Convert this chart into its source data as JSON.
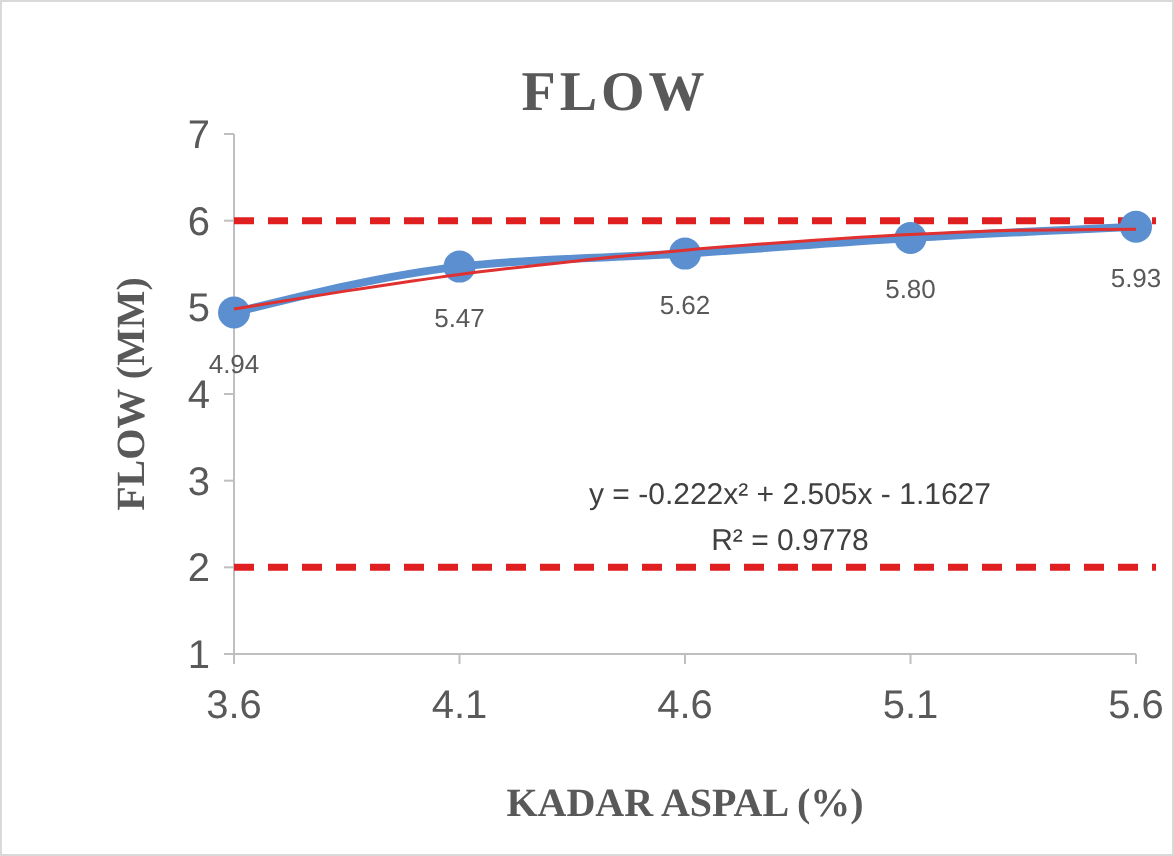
{
  "chart_data": {
    "type": "line",
    "title": "FLOW",
    "xlabel": "KADAR ASPAL (%)",
    "ylabel": "FLOW (MM)",
    "xlim": [
      3.6,
      5.6
    ],
    "xticks": [
      3.6,
      4.1,
      4.6,
      5.1,
      5.6
    ],
    "ylim": [
      1,
      7
    ],
    "yticks": [
      1,
      2,
      3,
      4,
      5,
      6,
      7
    ],
    "grid": false,
    "series": [
      {
        "color": "#5b8fd0",
        "x": [
          3.6,
          4.1,
          4.6,
          5.1,
          5.6
        ],
        "values": [
          4.94,
          5.47,
          5.62,
          5.8,
          5.93
        ],
        "marker": "circle",
        "line_style": "solid",
        "value_labels": [
          "4.94",
          "5.47",
          "5.62",
          "5.80",
          "5.93"
        ]
      },
      {
        "color": "#e03030",
        "x": [
          3.6,
          3.85,
          4.1,
          4.35,
          4.6,
          4.85,
          5.1,
          5.35,
          5.6
        ],
        "values": [
          4.98,
          5.19,
          5.38,
          5.53,
          5.66,
          5.76,
          5.84,
          5.89,
          5.9
        ],
        "marker": "none",
        "line_style": "solid"
      }
    ],
    "ref_lines": [
      {
        "axis": "y",
        "value": 6,
        "color": "#e02020",
        "line_style": "dashed"
      },
      {
        "axis": "y",
        "value": 2,
        "color": "#e02020",
        "line_style": "dashed"
      }
    ],
    "annotations": [
      "y = -0.222x² + 2.505x - 1.1627",
      "R² = 0.9778"
    ]
  }
}
